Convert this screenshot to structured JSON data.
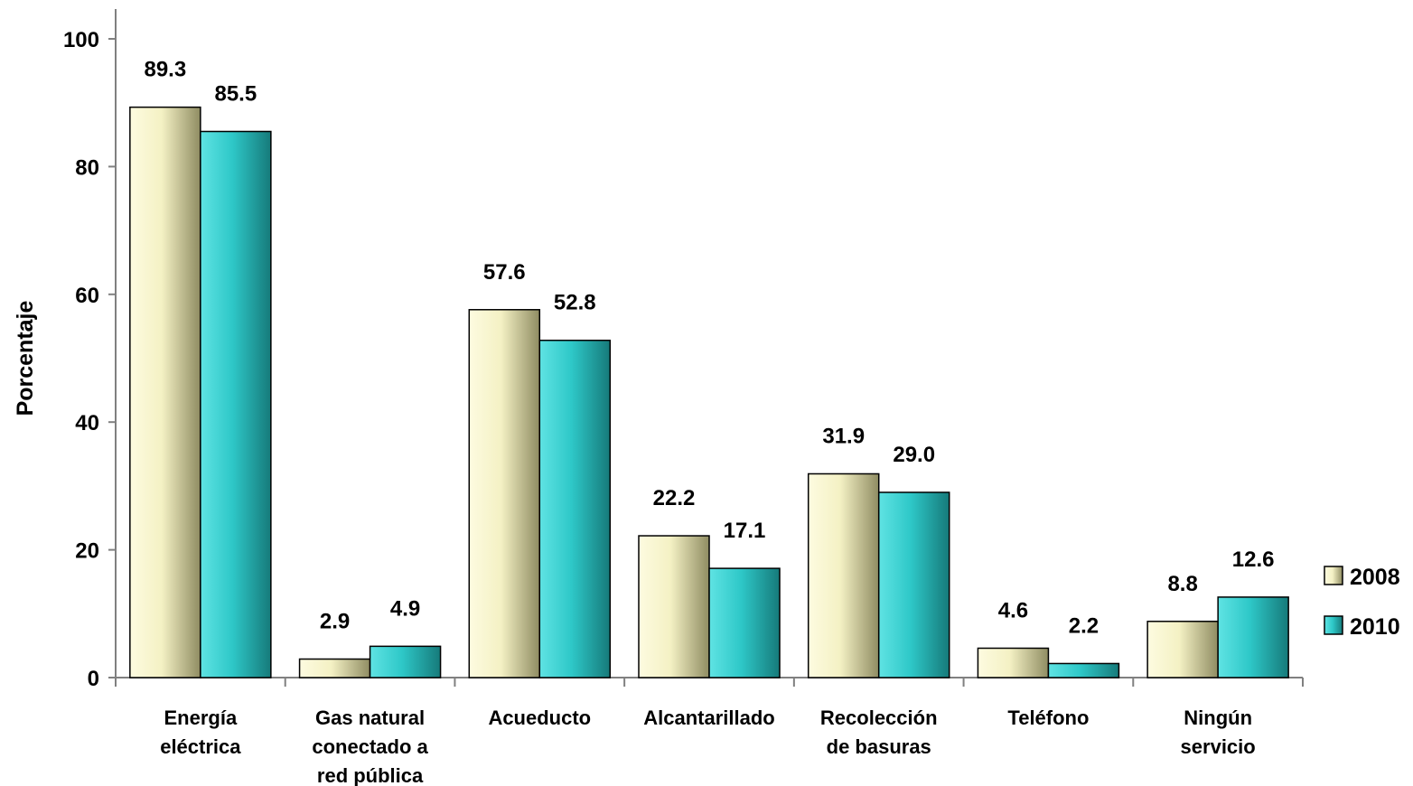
{
  "chart_data": {
    "type": "bar",
    "title": "",
    "xlabel": "",
    "ylabel": "Porcentaje",
    "ylim": [
      0,
      100
    ],
    "yticks": [
      0,
      20,
      40,
      60,
      80,
      100
    ],
    "grid": false,
    "legend_position": "right",
    "categories": [
      [
        "Energía",
        "eléctrica"
      ],
      [
        "Gas natural",
        "conectado a",
        "red pública"
      ],
      [
        "Acueducto"
      ],
      [
        "Alcantarillado"
      ],
      [
        "Recolección",
        "de basuras"
      ],
      [
        "Teléfono"
      ],
      [
        "Ningún",
        "servicio"
      ]
    ],
    "series": [
      {
        "name": "2008",
        "color": "#f4f1c4",
        "values": [
          89.3,
          2.9,
          57.6,
          22.2,
          31.9,
          4.6,
          8.8
        ],
        "labels": [
          "89.3",
          "2.9",
          "57.6",
          "22.2",
          "31.9",
          "4.6",
          "8.8"
        ]
      },
      {
        "name": "2010",
        "color": "#2ec8c8",
        "values": [
          85.5,
          4.9,
          52.8,
          17.1,
          29.0,
          2.2,
          12.6
        ],
        "labels": [
          "85.5",
          "4.9",
          "52.8",
          "17.1",
          "29.0",
          "2.2",
          "12.6"
        ]
      }
    ]
  }
}
